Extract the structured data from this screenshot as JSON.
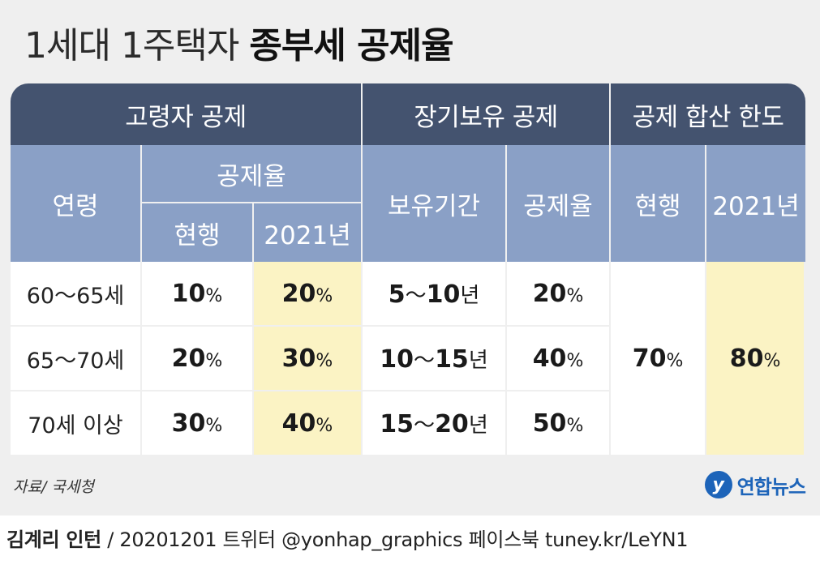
{
  "title": {
    "light": "1세대 1주택자 ",
    "bold": "종부세 공제율"
  },
  "header_top": [
    "고령자 공제",
    "장기보유 공제",
    "공제 합산 한도"
  ],
  "header": {
    "age": "연령",
    "deduction_rate": "공제율",
    "current": "현행",
    "y2021": "2021년",
    "holding_period": "보유기간",
    "lt_rate": "공제율",
    "cap_current": "현행",
    "cap_2021": "2021년"
  },
  "rows": [
    {
      "age": "60～65세",
      "current": "10",
      "y2021": "20",
      "period_a": "5",
      "period_b": "10",
      "lt_rate": "20"
    },
    {
      "age": "65～70세",
      "current": "20",
      "y2021": "30",
      "period_a": "10",
      "period_b": "15",
      "lt_rate": "40"
    },
    {
      "age": "70세 이상",
      "current": "30",
      "y2021": "40",
      "period_a": "15",
      "period_b": "20",
      "lt_rate": "50"
    }
  ],
  "cap": {
    "current": "70",
    "y2021": "80"
  },
  "units": {
    "percent": "%",
    "year": "년",
    "tilde": "～"
  },
  "source": "자료/ 국세청",
  "logo": {
    "mark": "y",
    "name": "연합뉴스"
  },
  "footer": {
    "author": "김계리 인턴",
    "rest": " / 20201201   트위터 @yonhap_graphics  페이스북 tuney.kr/LeYN1"
  },
  "colors": {
    "header_dark": "#44536f",
    "header_light": "#8aa0c6",
    "highlight": "#fbf3c4",
    "brand": "#1d64b9"
  }
}
